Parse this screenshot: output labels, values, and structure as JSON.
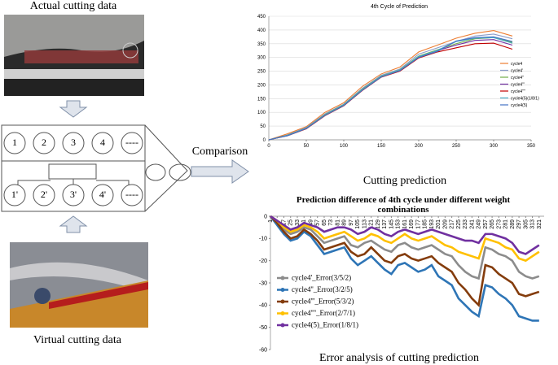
{
  "captions": {
    "actual": "Actual cutting data",
    "virtual": "Virtual cutting data",
    "comparison": "Comparison",
    "prediction": "Cutting prediction",
    "error": "Error analysis of cutting prediction"
  },
  "diagram": {
    "top_nodes": [
      "1",
      "2",
      "3",
      "4",
      "----"
    ],
    "bottom_nodes": [
      "1'",
      "2'",
      "3'",
      "4'",
      "----"
    ]
  },
  "chart_data": [
    {
      "type": "line",
      "title": "4th Cycle of Prediction",
      "grid": true,
      "legend": "right",
      "x": [
        0,
        25,
        50,
        75,
        100,
        125,
        150,
        175,
        200,
        225,
        250,
        275,
        300,
        325
      ],
      "xlim": [
        0,
        350
      ],
      "xticks": [
        0,
        50,
        100,
        150,
        200,
        250,
        300,
        350
      ],
      "ylim": [
        0,
        450
      ],
      "yticks": [
        0,
        50,
        100,
        150,
        200,
        250,
        300,
        350,
        400,
        450
      ],
      "series": [
        {
          "name": "cycle4",
          "color": "#ed7d31",
          "values": [
            0,
            22,
            48,
            100,
            135,
            195,
            240,
            265,
            320,
            345,
            370,
            388,
            398,
            378
          ]
        },
        {
          "name": "cycle4'",
          "color": "#8a9cc9",
          "values": [
            0,
            18,
            45,
            95,
            130,
            188,
            235,
            258,
            312,
            335,
            358,
            378,
            385,
            368
          ]
        },
        {
          "name": "cycle4''",
          "color": "#70ad47",
          "values": [
            0,
            17,
            43,
            92,
            128,
            185,
            232,
            255,
            305,
            328,
            350,
            368,
            372,
            355
          ]
        },
        {
          "name": "cycle4'''",
          "color": "#7030a0",
          "values": [
            0,
            16,
            42,
            90,
            126,
            182,
            230,
            253,
            302,
            325,
            345,
            362,
            365,
            345
          ]
        },
        {
          "name": "cycle4''''",
          "color": "#c00000",
          "values": [
            0,
            15,
            40,
            88,
            124,
            180,
            228,
            250,
            298,
            320,
            335,
            350,
            352,
            330
          ]
        },
        {
          "name": "cycle4(5)(1/8/1)",
          "color": "#4bacc6",
          "values": [
            0,
            16,
            42,
            90,
            127,
            183,
            231,
            254,
            303,
            326,
            358,
            370,
            372,
            352
          ]
        },
        {
          "name": "cycle4(5)",
          "color": "#4472c4",
          "values": [
            0,
            15,
            41,
            89,
            125,
            181,
            229,
            252,
            300,
            322,
            360,
            372,
            375,
            358
          ]
        }
      ]
    },
    {
      "type": "line",
      "title": "Prediction difference of 4th cycle under different weight combinations",
      "grid": false,
      "legend": "lower left",
      "x": [
        1,
        9,
        17,
        25,
        33,
        41,
        49,
        57,
        65,
        73,
        81,
        89,
        97,
        105,
        113,
        121,
        129,
        137,
        145,
        153,
        161,
        169,
        177,
        185,
        193,
        201,
        209,
        217,
        225,
        233,
        241,
        249,
        257,
        265,
        273,
        281,
        289,
        297,
        305,
        313,
        321
      ],
      "xlim": [
        1,
        327
      ],
      "xticks": [
        1,
        9,
        17,
        25,
        33,
        41,
        49,
        57,
        65,
        73,
        81,
        89,
        97,
        105,
        113,
        121,
        129,
        137,
        145,
        153,
        161,
        169,
        177,
        185,
        193,
        201,
        209,
        217,
        225,
        233,
        241,
        249,
        257,
        265,
        273,
        281,
        289,
        297,
        305,
        313,
        321
      ],
      "ylim": [
        -60,
        0
      ],
      "yticks": [
        0,
        -10,
        -20,
        -30,
        -40,
        -50,
        -60
      ],
      "series": [
        {
          "name": "cycle4'_Error(3/5/2)",
          "color": "#8c8c8c",
          "values": [
            0,
            -3,
            -6,
            -8,
            -7,
            -5,
            -6,
            -9,
            -12,
            -11,
            -10,
            -9,
            -13,
            -14,
            -12,
            -11,
            -13,
            -15,
            -16,
            -13,
            -12,
            -14,
            -15,
            -14,
            -13,
            -15,
            -17,
            -18,
            -22,
            -25,
            -27,
            -28,
            -14,
            -15,
            -17,
            -18,
            -20,
            -25,
            -27,
            -28,
            -27
          ]
        },
        {
          "name": "cycle4''_Error(3/2/5)",
          "color": "#2e75b6",
          "values": [
            0,
            -4,
            -8,
            -11,
            -10,
            -7,
            -9,
            -13,
            -17,
            -16,
            -15,
            -14,
            -19,
            -22,
            -20,
            -18,
            -21,
            -24,
            -26,
            -22,
            -21,
            -23,
            -25,
            -24,
            -22,
            -27,
            -29,
            -31,
            -37,
            -40,
            -43,
            -45,
            -31,
            -32,
            -35,
            -37,
            -40,
            -45,
            -46,
            -47,
            -47
          ]
        },
        {
          "name": "cycle4'''_Error(5/3/2)",
          "color": "#843c0c",
          "values": [
            0,
            -3,
            -7,
            -10,
            -9,
            -6,
            -8,
            -11,
            -15,
            -14,
            -13,
            -12,
            -16,
            -18,
            -17,
            -14,
            -17,
            -20,
            -21,
            -18,
            -17,
            -19,
            -20,
            -19,
            -18,
            -21,
            -23,
            -25,
            -30,
            -33,
            -37,
            -40,
            -22,
            -23,
            -26,
            -28,
            -30,
            -35,
            -36,
            -35,
            -34
          ]
        },
        {
          "name": "cycle4''''_Error(2/7/1)",
          "color": "#ffc000",
          "values": [
            0,
            -2,
            -5,
            -7,
            -6,
            -4,
            -5,
            -7,
            -10,
            -9,
            -8,
            -7,
            -9,
            -11,
            -10,
            -8,
            -9,
            -11,
            -12,
            -10,
            -8,
            -10,
            -11,
            -10,
            -9,
            -11,
            -13,
            -14,
            -16,
            -17,
            -18,
            -19,
            -10,
            -11,
            -12,
            -14,
            -15,
            -19,
            -20,
            -18,
            -16
          ]
        },
        {
          "name": "cycle4(5)_Error(1/8/1)",
          "color": "#7030a0",
          "values": [
            0,
            -2,
            -4,
            -6,
            -5,
            -3,
            -4,
            -5,
            -7,
            -6,
            -5,
            -5,
            -6,
            -8,
            -7,
            -5,
            -6,
            -8,
            -9,
            -7,
            -6,
            -7,
            -8,
            -7,
            -6,
            -7,
            -8,
            -9,
            -10,
            -11,
            -11,
            -12,
            -8,
            -8,
            -9,
            -10,
            -12,
            -16,
            -17,
            -15,
            -13
          ]
        }
      ]
    }
  ]
}
